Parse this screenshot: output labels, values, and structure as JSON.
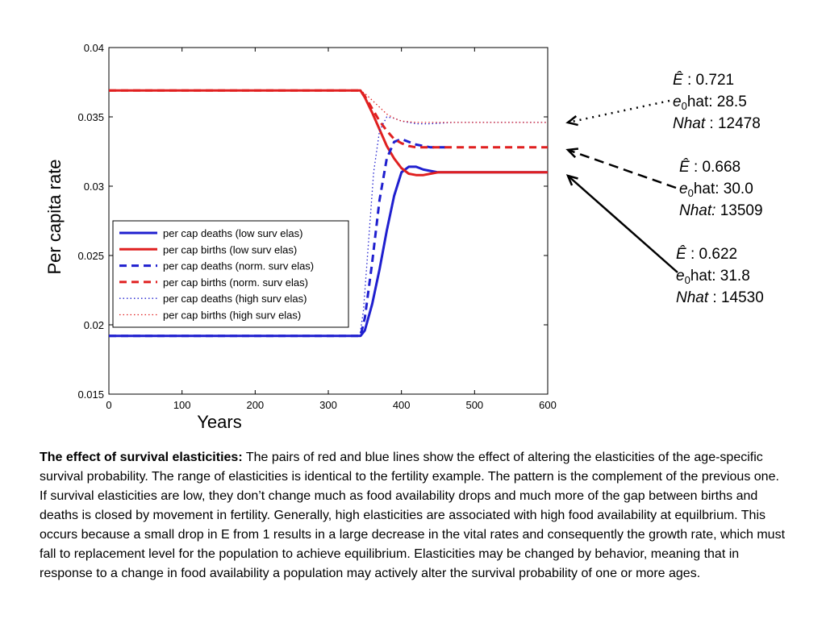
{
  "chart_data": {
    "type": "line",
    "title": "",
    "xlabel": "Years",
    "ylabel": "Per capita rate",
    "xlim": [
      0,
      600
    ],
    "ylim": [
      0.015,
      0.04
    ],
    "xticks": [
      "0",
      "100",
      "200",
      "300",
      "400",
      "500",
      "600"
    ],
    "yticks": [
      "0.015",
      "0.02",
      "0.025",
      "0.03",
      "0.035",
      "0.04"
    ],
    "grid": false,
    "legend_position": "lower-left",
    "series": [
      {
        "name": "per cap deaths (low surv elas)",
        "color": "#1f1fcf",
        "style": "solid",
        "x": [
          0,
          344,
          350,
          360,
          370,
          380,
          390,
          400,
          410,
          420,
          430,
          440,
          450,
          460,
          600
        ],
        "y": [
          0.0192,
          0.0192,
          0.0196,
          0.0215,
          0.024,
          0.0268,
          0.0293,
          0.031,
          0.0314,
          0.0314,
          0.0312,
          0.0311,
          0.031,
          0.031,
          0.031
        ]
      },
      {
        "name": "per cap births (low surv elas)",
        "color": "#e02020",
        "style": "solid",
        "x": [
          0,
          344,
          350,
          360,
          370,
          380,
          390,
          400,
          410,
          420,
          430,
          440,
          450,
          600
        ],
        "y": [
          0.0369,
          0.0369,
          0.0364,
          0.0353,
          0.0341,
          0.0329,
          0.032,
          0.0313,
          0.0309,
          0.0308,
          0.0308,
          0.0309,
          0.031,
          0.031
        ]
      },
      {
        "name": "per cap deaths (norm. surv elas)",
        "color": "#1f1fcf",
        "style": "dashed",
        "x": [
          0,
          344,
          350,
          360,
          370,
          380,
          390,
          400,
          410,
          420,
          430,
          440,
          460
        ],
        "y": [
          0.0192,
          0.0192,
          0.0205,
          0.0245,
          0.029,
          0.032,
          0.0332,
          0.0334,
          0.0332,
          0.033,
          0.0329,
          0.0328,
          0.0328
        ]
      },
      {
        "name": "per cap births (norm. surv elas)",
        "color": "#e02020",
        "style": "dashed",
        "x": [
          0,
          344,
          350,
          360,
          370,
          380,
          390,
          400,
          410,
          420,
          430,
          440,
          600
        ],
        "y": [
          0.0369,
          0.0369,
          0.0365,
          0.0356,
          0.0347,
          0.034,
          0.0334,
          0.0331,
          0.0329,
          0.0328,
          0.0328,
          0.0328,
          0.0328
        ]
      },
      {
        "name": "per cap deaths (high surv elas)",
        "color": "#1f1fcf",
        "style": "dotted",
        "x": [
          0,
          343,
          348,
          355,
          362,
          370,
          380,
          390,
          400,
          410,
          420,
          440,
          470,
          600
        ],
        "y": [
          0.0192,
          0.0192,
          0.021,
          0.026,
          0.031,
          0.034,
          0.035,
          0.0349,
          0.0347,
          0.0346,
          0.0345,
          0.0345,
          0.0346,
          0.0346
        ]
      },
      {
        "name": "per cap births (high surv elas)",
        "color": "#e02020",
        "style": "dotted",
        "x": [
          0,
          343,
          350,
          360,
          370,
          380,
          390,
          400,
          420,
          450,
          600
        ],
        "y": [
          0.0369,
          0.0369,
          0.0367,
          0.0362,
          0.0357,
          0.0352,
          0.0349,
          0.0347,
          0.0346,
          0.0346,
          0.0346
        ]
      }
    ]
  },
  "annotations": [
    {
      "e_label": "Ê",
      "e_value": ": 0.721",
      "e0_label": "e",
      "e0_sub": "0",
      "e0_value": "hat: 28.5",
      "n_label": "Nhat",
      "n_value": " : 12478",
      "arrow_style": "dotted"
    },
    {
      "e_label": "Ê",
      "e_value": ": 0.668",
      "e0_label": "e",
      "e0_sub": "0",
      "e0_value": "hat: 30.0",
      "n_label": "Nhat:",
      "n_value": " 13509",
      "arrow_style": "dashed"
    },
    {
      "e_label": "Ê",
      "e_value": ": 0.622",
      "e0_label": "e",
      "e0_sub": "0",
      "e0_value": "hat: 31.8",
      "n_label": "Nhat",
      "n_value": " : 14530",
      "arrow_style": "solid"
    }
  ],
  "caption": {
    "bold": "The effect of survival elasticities:",
    "text": " The pairs of red and blue lines show the effect of altering the elasticities of the age-specific survival probability. The range of elasticities is identical to the fertility example. The pattern is the complement of the previous one. If survival elasticities are low, they don’t change much as food availability drops and much more of the gap between births and deaths is closed by movement in fertility. Generally, high elasticities are associated with high food availability at equilbrium. This occurs because a small drop in E from 1 results in a large decrease in the vital rates and consequently the growth rate, which must fall to replacement level for the population to achieve equilibrium. Elasticities may be changed by behavior, meaning that in response to a change in food availability a population may actively alter the survival probability of one or more ages."
  }
}
